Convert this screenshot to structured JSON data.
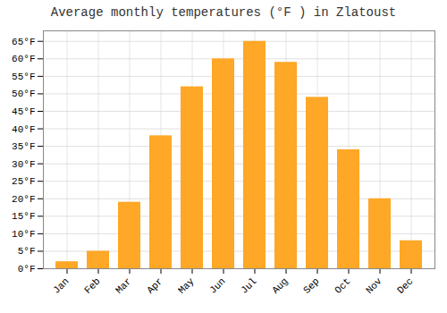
{
  "chart_data": {
    "type": "bar",
    "title": "Average monthly temperatures (°F ) in Zlatoust",
    "categories": [
      "Jan",
      "Feb",
      "Mar",
      "Apr",
      "May",
      "Jun",
      "Jul",
      "Aug",
      "Sep",
      "Oct",
      "Nov",
      "Dec"
    ],
    "values": [
      2,
      5,
      19,
      38,
      52,
      60,
      65,
      59,
      49,
      34,
      20,
      8
    ],
    "color": "#FFA726",
    "ylim": [
      0,
      68
    ],
    "yticks": [
      {
        "value": 0,
        "label": "0°F"
      },
      {
        "value": 5,
        "label": "5°F"
      },
      {
        "value": 10,
        "label": "10°F"
      },
      {
        "value": 15,
        "label": "15°F"
      },
      {
        "value": 20,
        "label": "20°F"
      },
      {
        "value": 25,
        "label": "25°F"
      },
      {
        "value": 30,
        "label": "30°F"
      },
      {
        "value": 35,
        "label": "35°F"
      },
      {
        "value": 40,
        "label": "40°F"
      },
      {
        "value": 45,
        "label": "45°F"
      },
      {
        "value": 50,
        "label": "50°F"
      },
      {
        "value": 55,
        "label": "55°F"
      },
      {
        "value": 60,
        "label": "60°F"
      },
      {
        "value": 65,
        "label": "65°F"
      }
    ],
    "grid": true
  }
}
